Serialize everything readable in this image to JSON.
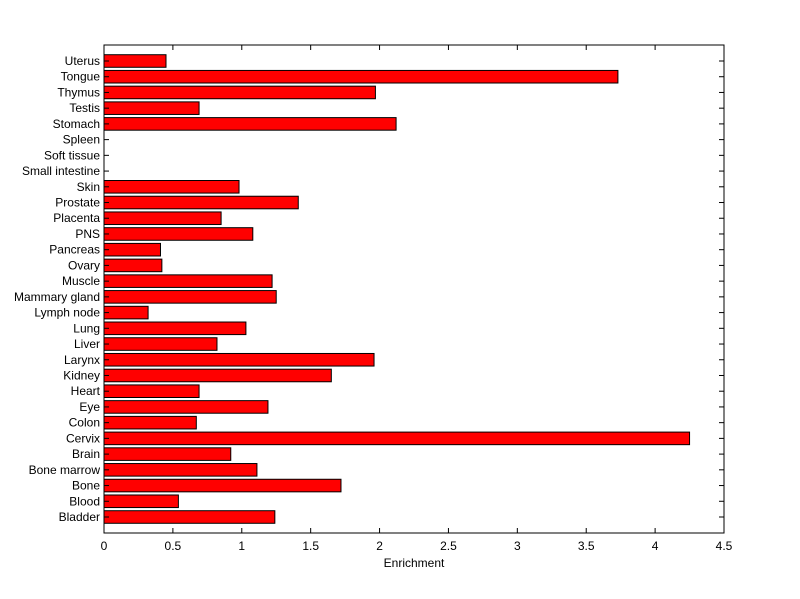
{
  "chart_data": {
    "type": "bar",
    "orientation": "horizontal",
    "title": "",
    "xlabel": "Enrichment",
    "ylabel": "",
    "xlim": [
      0,
      4.5
    ],
    "x_ticks": [
      0,
      0.5,
      1,
      1.5,
      2,
      2.5,
      3,
      3.5,
      4,
      4.5
    ],
    "x_tick_labels": [
      "0",
      "0.5",
      "1",
      "1.5",
      "2",
      "2.5",
      "3",
      "3.5",
      "4",
      "4.5"
    ],
    "grid": false,
    "legend": "none",
    "bar_color": "#ff0000",
    "bar_edge_color": "#000000",
    "categories": [
      "Uterus",
      "Tongue",
      "Thymus",
      "Testis",
      "Stomach",
      "Spleen",
      "Soft tissue",
      "Small intestine",
      "Skin",
      "Prostate",
      "Placenta",
      "PNS",
      "Pancreas",
      "Ovary",
      "Muscle",
      "Mammary gland",
      "Lymph node",
      "Lung",
      "Liver",
      "Larynx",
      "Kidney",
      "Heart",
      "Eye",
      "Colon",
      "Cervix",
      "Brain",
      "Bone marrow",
      "Bone",
      "Blood",
      "Bladder"
    ],
    "values": [
      0.45,
      3.73,
      1.97,
      0.69,
      2.12,
      0,
      0,
      0,
      0.98,
      1.41,
      0.85,
      1.08,
      0.41,
      0.42,
      1.22,
      1.25,
      0.32,
      1.03,
      0.82,
      1.96,
      1.65,
      0.69,
      1.19,
      0.67,
      4.25,
      0.92,
      1.11,
      1.72,
      0.54,
      1.24
    ]
  }
}
